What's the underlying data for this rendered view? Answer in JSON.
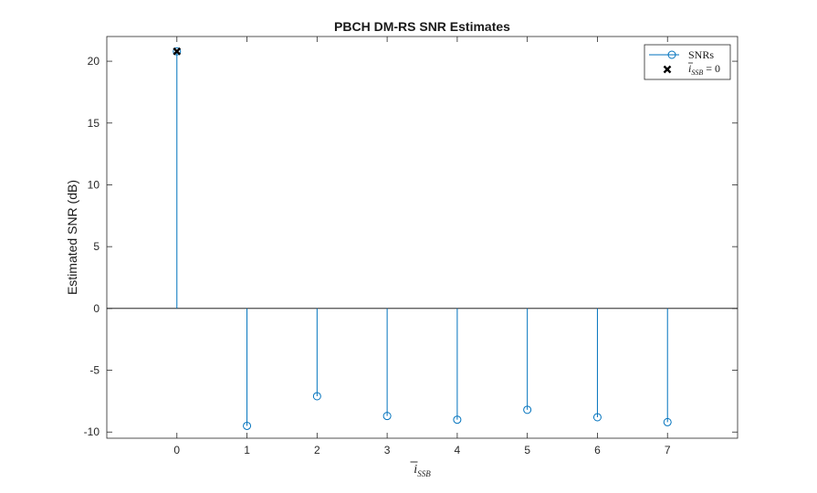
{
  "chart_data": {
    "type": "stem",
    "title": "PBCH DM-RS SNR Estimates",
    "ylabel": "Estimated SNR (dB)",
    "xlabel": {
      "main": "i",
      "overbar": true,
      "subscript": "SSB"
    },
    "xlim": [
      -1,
      8
    ],
    "ylim": [
      -10.5,
      22
    ],
    "x_ticks": [
      0,
      1,
      2,
      3,
      4,
      5,
      6,
      7
    ],
    "x_tick_labels": [
      "0",
      "1",
      "2",
      "3",
      "4",
      "5",
      "6",
      "7"
    ],
    "y_ticks": [
      -10,
      -5,
      0,
      5,
      10,
      15,
      20
    ],
    "y_tick_labels": [
      "-10",
      "-5",
      "0",
      "5",
      "10",
      "15",
      "20"
    ],
    "baseline": 0,
    "grid": false,
    "legend_position": "top-right",
    "series": [
      {
        "name": "SNRs",
        "marker": "circle",
        "color": "#0072BD",
        "x": [
          0,
          1,
          2,
          3,
          4,
          5,
          6,
          7
        ],
        "y": [
          20.8,
          -9.5,
          -7.1,
          -8.7,
          -9.0,
          -8.2,
          -8.8,
          -9.2
        ]
      },
      {
        "name_parts": {
          "main": "i",
          "overbar": true,
          "subscript": "SSB",
          "suffix": " = 0"
        },
        "marker": "x",
        "color": "#000000",
        "x": [
          0
        ],
        "y": [
          20.8
        ]
      }
    ]
  }
}
